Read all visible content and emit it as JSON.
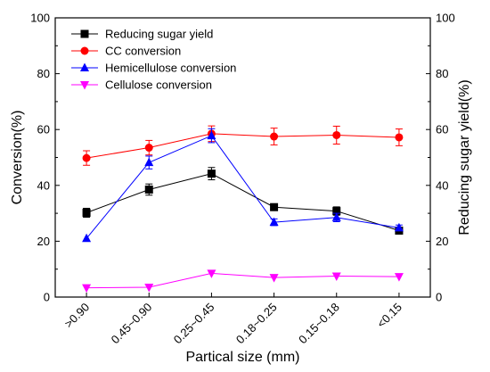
{
  "chart_data": {
    "type": "line",
    "categories": [
      ">0.90",
      "0.45~0.90",
      "0.25~0.45",
      "0.18~0.25",
      "0.15~0.18",
      "<0.15"
    ],
    "xlabel": "Partical size (mm)",
    "ylabel_left": "Conversion(%)",
    "ylabel_right": "Reducing sugar yield(%)",
    "ylim": [
      0,
      100
    ],
    "yticks": [
      0,
      20,
      40,
      60,
      80,
      100
    ],
    "legend_position": "top-left",
    "grid": false,
    "series": [
      {
        "name": "Reducing sugar yield",
        "color": "#000000",
        "marker": "square",
        "values": [
          30.2,
          38.5,
          44.2,
          32.2,
          30.8,
          23.8
        ],
        "errors": [
          1.6,
          2.0,
          2.2,
          1.2,
          1.5,
          0.8
        ]
      },
      {
        "name": "CC conversion",
        "color": "#ff0000",
        "marker": "circle",
        "values": [
          49.8,
          53.5,
          58.5,
          57.5,
          58.0,
          57.2
        ],
        "errors": [
          2.6,
          2.6,
          2.8,
          3.0,
          3.2,
          3.0
        ]
      },
      {
        "name": "Hemicellulose conversion",
        "color": "#0000ff",
        "marker": "triangle-up",
        "values": [
          21.0,
          48.2,
          57.8,
          26.8,
          28.5,
          24.8
        ],
        "errors": [
          0,
          2.3,
          2.5,
          1.2,
          1.5,
          1.0
        ]
      },
      {
        "name": "Cellulose conversion",
        "color": "#ff00ff",
        "marker": "triangle-down",
        "values": [
          3.3,
          3.5,
          8.5,
          7.0,
          7.5,
          7.3
        ],
        "errors": [
          0,
          0,
          0,
          0,
          0,
          0
        ]
      }
    ]
  }
}
